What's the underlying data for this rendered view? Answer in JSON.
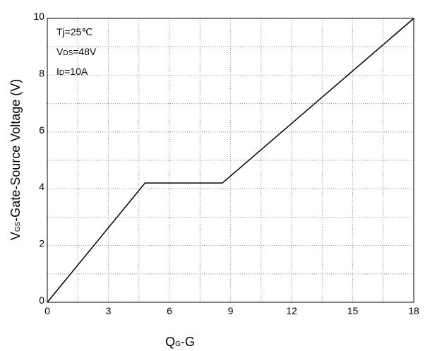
{
  "chart_data": {
    "type": "line",
    "title": "",
    "xlabel": {
      "main": "Q",
      "sub": "G",
      "suffix": "-G"
    },
    "ylabel": {
      "main": "V",
      "sub": "GS",
      "suffix": "-Gate-Source Voltage (V)"
    },
    "xlim": [
      0,
      18
    ],
    "ylim": [
      0,
      10
    ],
    "x_ticks": [
      0,
      3,
      6,
      9,
      12,
      15,
      18
    ],
    "y_ticks": [
      0,
      2,
      4,
      6,
      8,
      10
    ],
    "x_grid_step": 1.5,
    "y_grid_step": 1,
    "grid": true,
    "annotations": [
      {
        "main": "Tj=25℃",
        "sub": "",
        "suffix": ""
      },
      {
        "main": "V",
        "sub": "DS",
        "suffix": "=48V"
      },
      {
        "main": "I",
        "sub": "D",
        "suffix": "=10A"
      }
    ],
    "series": [
      {
        "x": [
          0,
          4.8,
          8.6,
          18
        ],
        "y": [
          0,
          4.2,
          4.2,
          10
        ],
        "color": "#000000"
      }
    ]
  }
}
